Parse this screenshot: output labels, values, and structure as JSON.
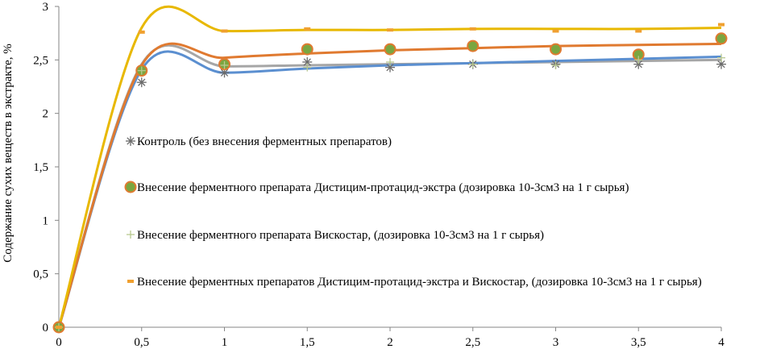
{
  "chart_data": {
    "type": "scatter",
    "title": "",
    "xlabel": "",
    "ylabel": "Содержание сухих веществ в экстракте, %",
    "xlim": [
      0,
      4
    ],
    "ylim": [
      0,
      3
    ],
    "x_ticks": [
      "0",
      "0,5",
      "1",
      "1,5",
      "2",
      "2,5",
      "3",
      "3,5",
      "4"
    ],
    "y_ticks": [
      "0",
      "0,5",
      "1",
      "1,5",
      "2",
      "2,5",
      "3"
    ],
    "grid": false,
    "legend_position": "inside-center",
    "x": [
      0,
      0.5,
      1,
      1.5,
      2,
      2.5,
      3,
      3.5,
      4
    ],
    "series": [
      {
        "name": "Контроль (без внесения ферментных препаратов)",
        "marker": "asterisk",
        "marker_color": "#6b6b6b",
        "trend_color": "#5b8fd0",
        "values": [
          0,
          2.29,
          2.38,
          2.48,
          2.43,
          2.46,
          2.46,
          2.46,
          2.46
        ]
      },
      {
        "name": "Внесение ферментного препарата Дистицим-протацид-экстра (дозировка 10-3см3 на 1 г сырья)",
        "marker": "circle",
        "marker_color": "#7aa640",
        "marker_edge": "#e07a30",
        "trend_color": "#e07a30",
        "values": [
          0,
          2.4,
          2.46,
          2.6,
          2.6,
          2.63,
          2.6,
          2.55,
          2.7
        ]
      },
      {
        "name": "Внесение ферментного препарата Вискостар, (дозировка 10-3см3 на 1 г сырья)",
        "marker": "plus",
        "marker_color": "#b8c890",
        "trend_color": "#a6a6a6",
        "values": [
          0,
          2.4,
          2.45,
          2.43,
          2.48,
          2.46,
          2.45,
          2.5,
          2.52
        ]
      },
      {
        "name": "Внесение ферментных препаратов Дистицим-протацид-экстра и Вискостар, (дозировка 10-3см3 на 1 г сырья)",
        "marker": "dash",
        "marker_color": "#f0a030",
        "trend_color": "#e8b800",
        "values": [
          0,
          2.76,
          2.77,
          2.79,
          2.78,
          2.79,
          2.77,
          2.77,
          2.83
        ]
      }
    ],
    "trend_lines": [
      {
        "series": 0,
        "values": [
          0,
          2.41,
          2.38,
          2.42,
          2.45,
          2.47,
          2.49,
          2.51,
          2.53
        ]
      },
      {
        "series": 1,
        "values": [
          0,
          2.45,
          2.52,
          2.56,
          2.59,
          2.61,
          2.63,
          2.64,
          2.65
        ]
      },
      {
        "series": 2,
        "values": [
          0,
          2.46,
          2.44,
          2.45,
          2.46,
          2.47,
          2.48,
          2.49,
          2.5
        ]
      },
      {
        "series": 3,
        "values": [
          0,
          2.8,
          2.77,
          2.78,
          2.78,
          2.79,
          2.79,
          2.79,
          2.8
        ]
      }
    ]
  }
}
